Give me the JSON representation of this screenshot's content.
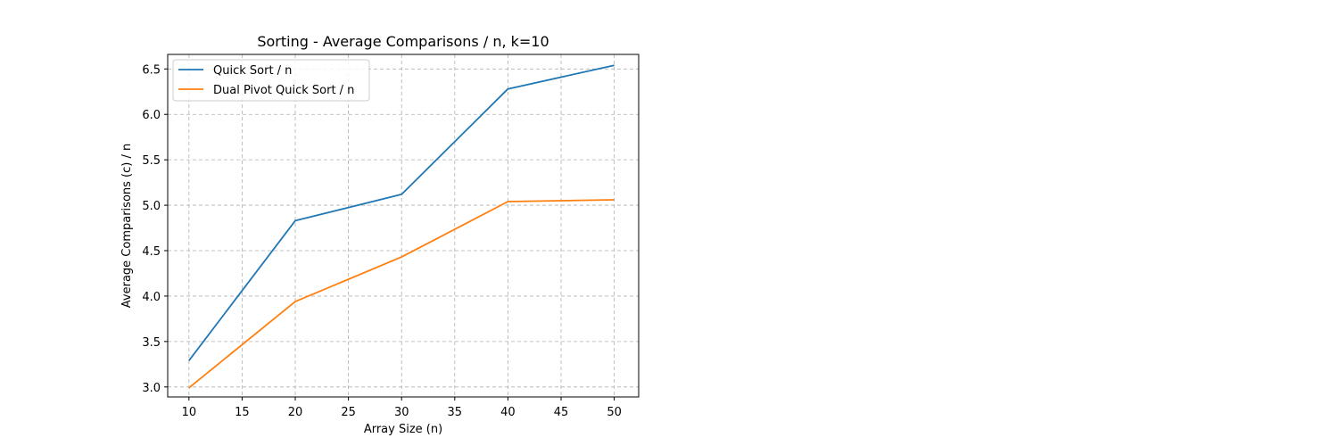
{
  "chart_data": {
    "type": "line",
    "title": "Sorting - Average Comparisons / n, k=10",
    "xlabel": "Array Size (n)",
    "ylabel": "Average Comparisons (c) / n",
    "x": [
      10,
      20,
      30,
      40,
      50
    ],
    "xlim": [
      8,
      52.3
    ],
    "ylim": [
      2.89,
      6.66
    ],
    "xticks": [
      10,
      15,
      20,
      25,
      30,
      35,
      40,
      45,
      50
    ],
    "yticks": [
      3.0,
      3.5,
      4.0,
      4.5,
      5.0,
      5.5,
      6.0,
      6.5
    ],
    "grid": true,
    "legend_position": "top-left",
    "series": [
      {
        "name": "Quick Sort / n",
        "color": "#1f77b4",
        "values": [
          3.29,
          4.83,
          5.12,
          6.28,
          6.54
        ]
      },
      {
        "name": "Dual Pivot Quick Sort / n",
        "color": "#ff7f0e",
        "values": [
          2.99,
          3.94,
          4.43,
          5.04,
          5.06
        ]
      }
    ]
  }
}
